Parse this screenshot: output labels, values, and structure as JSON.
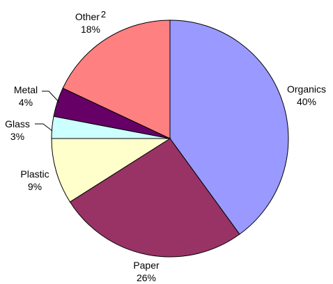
{
  "chart_data": {
    "type": "pie",
    "start_angle_deg": 0,
    "direction": "clockwise",
    "slices": [
      {
        "label": "Organics",
        "percent_label": "40%",
        "value": 40,
        "color": "#9999FF"
      },
      {
        "label": "Paper",
        "percent_label": "26%",
        "value": 26,
        "color": "#993366"
      },
      {
        "label": "Plastic",
        "percent_label": "9%",
        "value": 9,
        "color": "#FFFFCC"
      },
      {
        "label": "Glass",
        "percent_label": "3%",
        "value": 3,
        "color": "#CCFFFF"
      },
      {
        "label": "Metal",
        "percent_label": "4%",
        "value": 4,
        "color": "#660066"
      },
      {
        "label": "Other",
        "label_superscript": "2",
        "percent_label": "18%",
        "value": 18,
        "color": "#FF8080"
      }
    ],
    "slice_border_color": "#000000"
  }
}
